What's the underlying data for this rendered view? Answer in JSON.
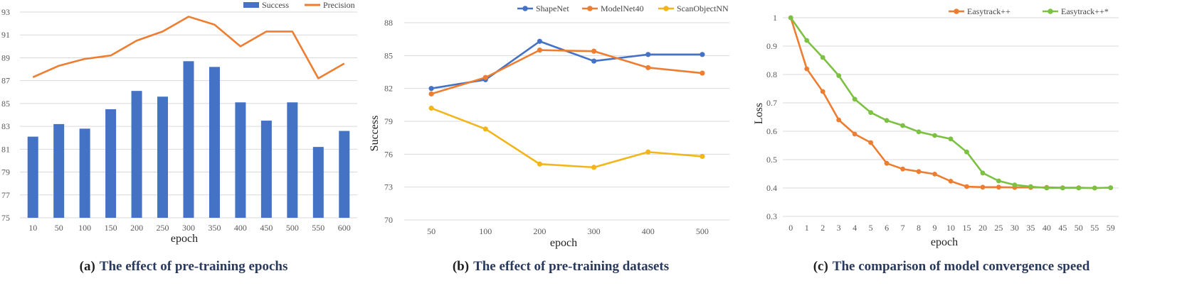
{
  "chart_data": [
    {
      "id": "a",
      "type": "bar+line",
      "caption_label": "(a)",
      "caption_text": "The effect of pre-training epochs",
      "xlabel": "epoch",
      "ylabel": "",
      "categories": [
        "10",
        "50",
        "100",
        "150",
        "200",
        "250",
        "300",
        "350",
        "400",
        "450",
        "500",
        "550",
        "600"
      ],
      "ylim": [
        75,
        93
      ],
      "yticks": [
        "75",
        "77",
        "79",
        "81",
        "83",
        "85",
        "87",
        "89",
        "91",
        "93"
      ],
      "grid": true,
      "legend_position": "top-right",
      "series": [
        {
          "name": "Success",
          "kind": "bar",
          "color": "#4472C4",
          "values": [
            82.1,
            83.2,
            82.8,
            84.5,
            86.1,
            85.6,
            88.7,
            88.2,
            85.1,
            83.5,
            85.1,
            81.2,
            82.6
          ]
        },
        {
          "name": "Precision",
          "kind": "line",
          "color": "#ED7D31",
          "values": [
            87.3,
            88.3,
            88.9,
            89.2,
            90.5,
            91.3,
            92.6,
            91.9,
            90.0,
            91.3,
            91.3,
            87.2,
            88.5
          ]
        }
      ]
    },
    {
      "id": "b",
      "type": "line",
      "caption_label": "(b)",
      "caption_text": "The effect of pre-training datasets",
      "xlabel": "epoch",
      "ylabel": "Success",
      "categories": [
        "50",
        "100",
        "200",
        "300",
        "400",
        "500"
      ],
      "ylim": [
        70,
        88
      ],
      "yticks": [
        "70",
        "73",
        "76",
        "79",
        "82",
        "85",
        "88"
      ],
      "grid": true,
      "legend_position": "top",
      "series": [
        {
          "name": "ShapeNet",
          "color": "#4472C4",
          "values": [
            82.0,
            82.8,
            86.3,
            84.5,
            85.1,
            85.1
          ]
        },
        {
          "name": "ModelNet40",
          "color": "#ED7D31",
          "values": [
            81.5,
            83.0,
            85.5,
            85.4,
            83.9,
            83.4
          ]
        },
        {
          "name": "ScanObjectNN",
          "color": "#F2B61C",
          "values": [
            80.2,
            78.3,
            75.1,
            74.8,
            76.2,
            75.8
          ]
        }
      ]
    },
    {
      "id": "c",
      "type": "line",
      "caption_label": "(c)",
      "caption_text": "The comparison of model convergence speed",
      "xlabel": "epoch",
      "ylabel": "Loss",
      "categories": [
        "0",
        "1",
        "2",
        "3",
        "4",
        "5",
        "6",
        "7",
        "8",
        "9",
        "10",
        "15",
        "20",
        "25",
        "30",
        "35",
        "40",
        "45",
        "50",
        "55",
        "59"
      ],
      "ylim": [
        0.3,
        1.0
      ],
      "yticks": [
        "0.3",
        "0.4",
        "0.5",
        "0.6",
        "0.7",
        "0.8",
        "0.9",
        "1"
      ],
      "grid": true,
      "legend_position": "top-right",
      "series": [
        {
          "name": "Easytrack++",
          "color": "#ED7D31",
          "values": [
            1.0,
            0.82,
            0.74,
            0.64,
            0.59,
            0.56,
            0.487,
            0.467,
            0.458,
            0.449,
            0.424,
            0.405,
            0.403,
            0.403,
            0.402,
            0.402,
            0.402,
            0.401,
            0.401,
            0.4,
            0.401
          ]
        },
        {
          "name": "Easytrack++*",
          "color": "#7CC142",
          "values": [
            1.0,
            0.92,
            0.86,
            0.796,
            0.713,
            0.666,
            0.638,
            0.62,
            0.598,
            0.585,
            0.573,
            0.527,
            0.453,
            0.425,
            0.411,
            0.405,
            0.4,
            0.4,
            0.4,
            0.4,
            0.401
          ]
        }
      ]
    }
  ]
}
